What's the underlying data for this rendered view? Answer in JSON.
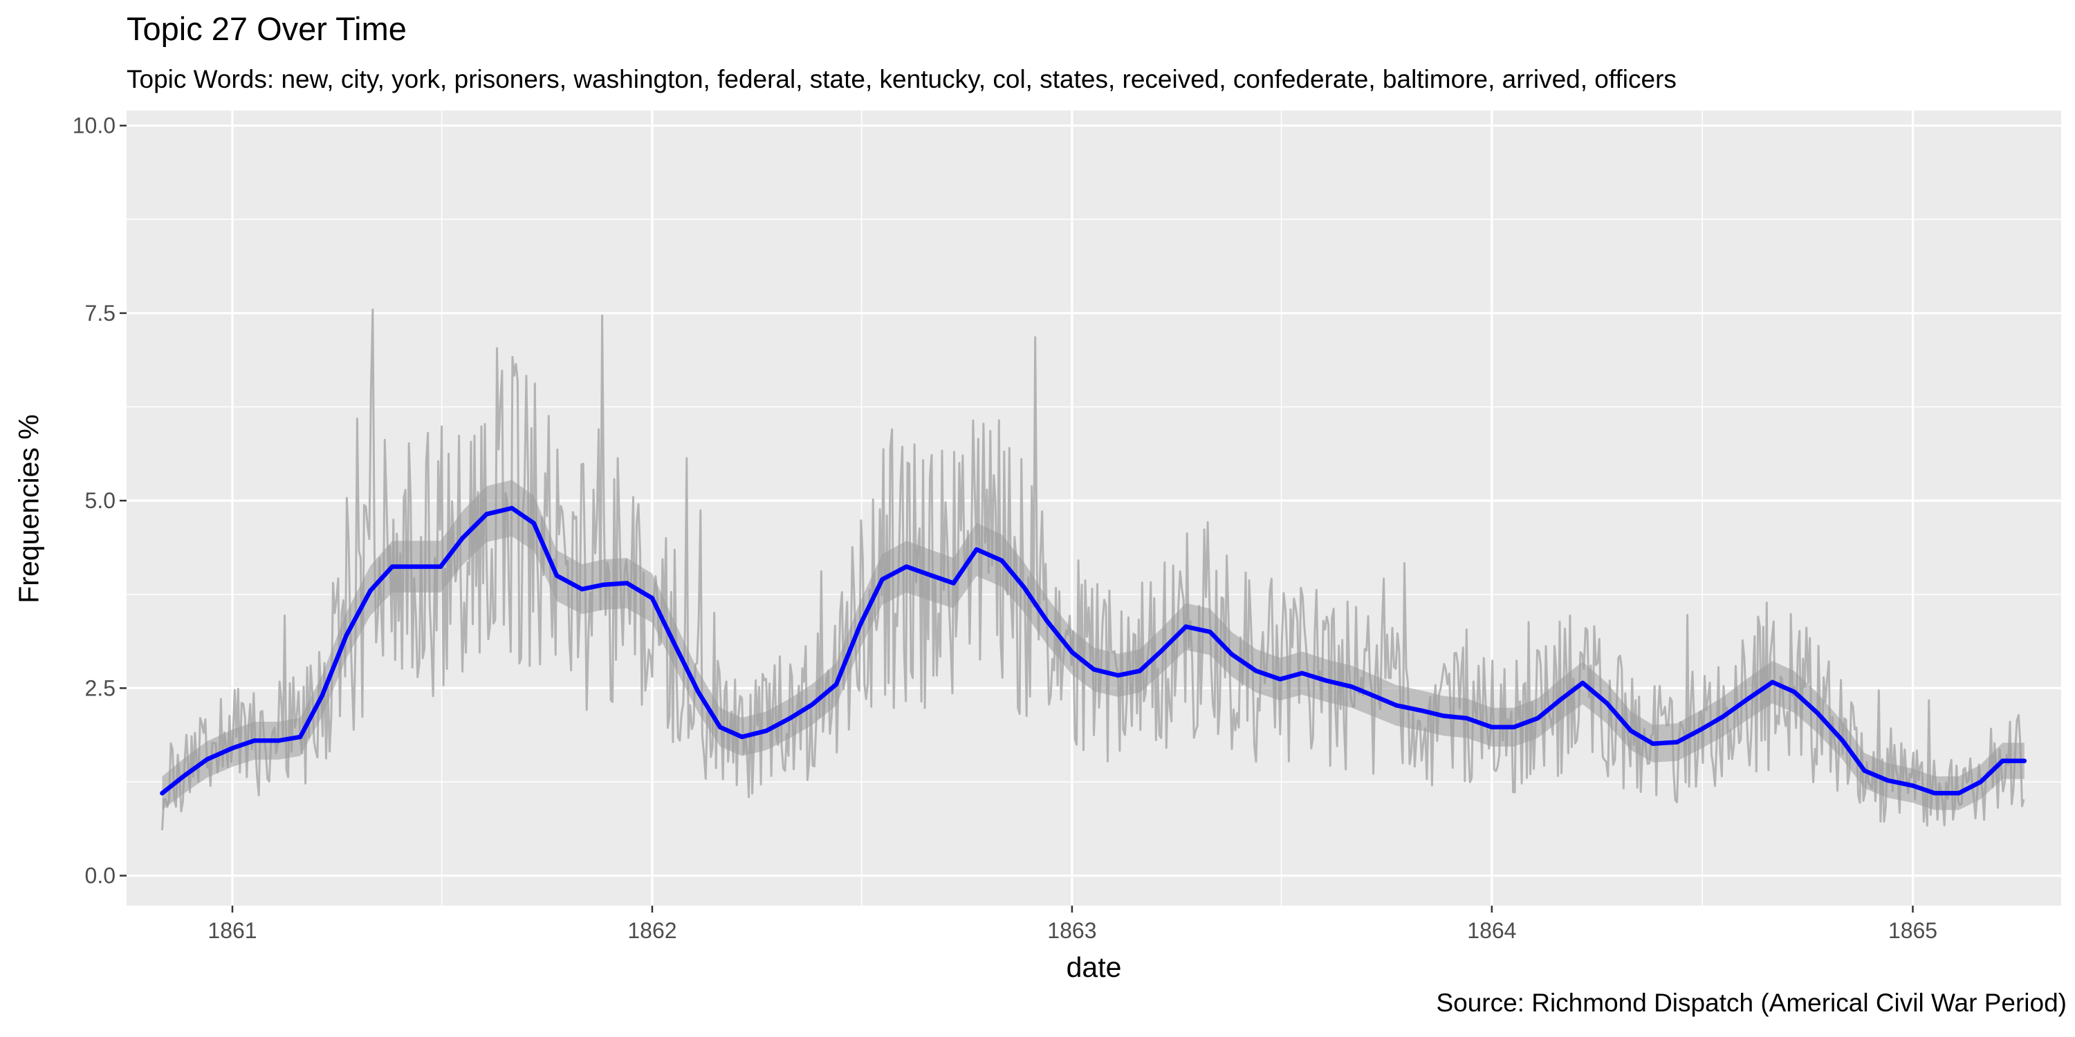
{
  "chart_data": {
    "type": "line",
    "title": "Topic 27 Over Time",
    "subtitle": "Topic Words: new, city, york, prisoners, washington, federal, state, kentucky, col, states, received, confederate, baltimore, arrived, officers",
    "caption": "Source: Richmond Dispatch (Americal Civil War Period)",
    "xlabel": "date",
    "ylabel": "Frequencies %",
    "xlim": [
      "1860-10-01",
      "1865-05-10"
    ],
    "ylim": [
      -0.4,
      10.2
    ],
    "x_ticks": [
      "1861",
      "1862",
      "1863",
      "1864",
      "1865"
    ],
    "y_ticks": [
      "0.0",
      "2.5",
      "5.0",
      "7.5",
      "10.0"
    ],
    "grid": true,
    "series": [
      {
        "kind": "smooth",
        "color": "#0000ff",
        "ribbon_color": "#9a9a9a",
        "x": [
          "1860-11-01",
          "1860-11-20",
          "1860-12-10",
          "1861-01-01",
          "1861-01-20",
          "1861-02-10",
          "1861-03-01",
          "1861-03-20",
          "1861-04-10",
          "1861-05-01",
          "1861-05-20",
          "1861-06-10",
          "1861-07-01",
          "1861-07-20",
          "1861-08-10",
          "1861-09-01",
          "1861-09-20",
          "1861-10-10",
          "1861-11-01",
          "1861-11-20",
          "1861-12-10",
          "1862-01-01",
          "1862-01-20",
          "1862-02-10",
          "1862-03-01",
          "1862-03-20",
          "1862-04-10",
          "1862-05-01",
          "1862-05-20",
          "1862-06-10",
          "1862-07-01",
          "1862-07-20",
          "1862-08-10",
          "1862-09-01",
          "1862-09-20",
          "1862-10-10",
          "1862-11-01",
          "1862-11-20",
          "1862-12-10",
          "1863-01-01",
          "1863-01-20",
          "1863-02-10",
          "1863-03-01",
          "1863-03-20",
          "1863-04-10",
          "1863-05-01",
          "1863-05-20",
          "1863-06-10",
          "1863-07-01",
          "1863-07-20",
          "1863-08-10",
          "1863-09-01",
          "1863-09-20",
          "1863-10-10",
          "1863-11-01",
          "1863-11-20",
          "1863-12-10",
          "1864-01-01",
          "1864-01-20",
          "1864-02-10",
          "1864-03-01",
          "1864-03-20",
          "1864-04-10",
          "1864-05-01",
          "1864-05-20",
          "1864-06-10",
          "1864-07-01",
          "1864-07-20",
          "1864-08-10",
          "1864-09-01",
          "1864-09-20",
          "1864-10-10",
          "1864-11-01",
          "1864-11-20",
          "1864-12-10",
          "1865-01-01",
          "1865-01-20",
          "1865-02-10",
          "1865-03-01",
          "1865-03-20",
          "1865-04-08"
        ],
        "y": [
          1.1,
          1.33,
          1.55,
          1.7,
          1.8,
          1.8,
          1.85,
          2.4,
          3.2,
          3.8,
          4.12,
          4.12,
          4.12,
          4.5,
          4.82,
          4.9,
          4.7,
          4.0,
          3.82,
          3.88,
          3.9,
          3.7,
          3.1,
          2.45,
          1.98,
          1.85,
          1.93,
          2.1,
          2.28,
          2.55,
          3.35,
          3.95,
          4.12,
          4.0,
          3.9,
          4.35,
          4.2,
          3.85,
          3.4,
          2.98,
          2.75,
          2.67,
          2.73,
          3.0,
          3.32,
          3.25,
          2.95,
          2.73,
          2.62,
          2.7,
          2.6,
          2.52,
          2.4,
          2.27,
          2.2,
          2.13,
          2.1,
          1.98,
          1.98,
          2.1,
          2.35,
          2.57,
          2.3,
          1.93,
          1.76,
          1.78,
          1.95,
          2.12,
          2.35,
          2.58,
          2.45,
          2.17,
          1.8,
          1.4,
          1.27,
          1.2,
          1.1,
          1.1,
          1.25,
          1.53,
          1.53
        ]
      }
    ]
  }
}
